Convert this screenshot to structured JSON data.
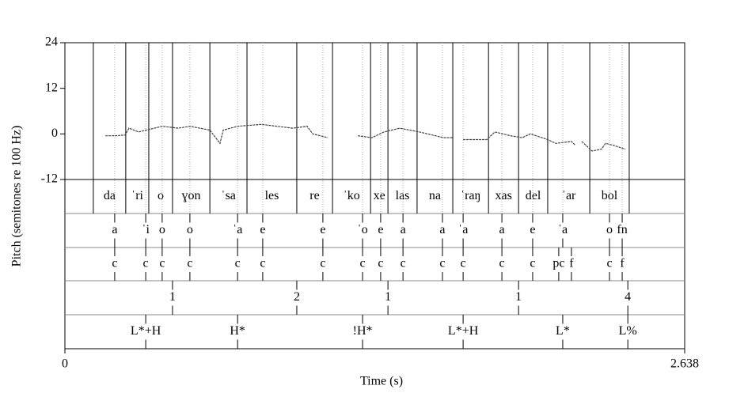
{
  "chart_data": {
    "type": "line",
    "ylabel": "Pitch (semitones re 100 Hz)",
    "xlabel": "Time (s)",
    "xlim": [
      0,
      2.638
    ],
    "xticks": [
      0,
      2.638
    ],
    "ylim": [
      -12,
      24
    ],
    "yticks": [
      24,
      12,
      0,
      -12
    ],
    "color": "#444444",
    "x": [
      0.172,
      0.212,
      0.256,
      0.273,
      0.313,
      0.414,
      0.482,
      0.532,
      0.617,
      0.66,
      0.674,
      0.735,
      0.836,
      0.97,
      1.031,
      1.055,
      1.119,
      null,
      1.247,
      1.307,
      1.358,
      1.425,
      1.509,
      1.611,
      1.651,
      null,
      1.695,
      1.796,
      1.83,
      1.897,
      1.947,
      1.981,
      2.055,
      2.089,
      2.156,
      2.173,
      null,
      2.2,
      2.244,
      2.284,
      2.301,
      2.335,
      2.385
    ],
    "values": [
      -0.5,
      -0.5,
      -0.3,
      1.5,
      0.5,
      2,
      1.5,
      2,
      1,
      -2.5,
      1,
      2,
      2.5,
      1.5,
      2,
      0,
      -1,
      null,
      -0.5,
      -1,
      0.5,
      1.5,
      0.5,
      -1,
      -1,
      null,
      -1.5,
      -1.5,
      0.5,
      -0.5,
      -1,
      0,
      -1.5,
      -2.5,
      -2,
      -3,
      null,
      -2,
      -4.5,
      -4,
      -2.5,
      -3,
      -4
    ],
    "tiers": [
      {
        "kind": "interval",
        "labels": [
          "da",
          "ˈri",
          "o",
          "ɣon",
          "ˈsa",
          "les",
          "re",
          "ˈko",
          "xe",
          "las",
          "na",
          "ˈraŋ",
          "xas",
          "del",
          "ˈar",
          "bol"
        ],
        "boundaries": [
          0.121,
          0.259,
          0.357,
          0.458,
          0.617,
          0.775,
          0.987,
          1.139,
          1.301,
          1.375,
          1.499,
          1.651,
          1.803,
          1.931,
          2.055,
          2.234,
          2.402
        ]
      },
      {
        "kind": "point",
        "labels": [
          "a",
          "ˈi",
          "o",
          "o",
          "ˈa",
          "e",
          "e",
          "ˈo",
          "e",
          "a",
          "a",
          "ˈa",
          "a",
          "e",
          "ˈa",
          "o",
          "fn"
        ],
        "times": [
          0.212,
          0.344,
          0.414,
          0.532,
          0.735,
          0.842,
          1.098,
          1.267,
          1.344,
          1.439,
          1.607,
          1.695,
          1.86,
          1.991,
          2.119,
          2.318,
          2.372
        ]
      },
      {
        "kind": "point",
        "labels": [
          "c",
          "c",
          "c",
          "c",
          "c",
          "c",
          "c",
          "c",
          "c",
          "c",
          "c",
          "c",
          "c",
          "c",
          "pc",
          "f",
          "c",
          "f"
        ],
        "times": [
          0.212,
          0.344,
          0.414,
          0.532,
          0.735,
          0.842,
          1.098,
          1.267,
          1.344,
          1.439,
          1.607,
          1.695,
          1.86,
          1.991,
          2.102,
          2.156,
          2.318,
          2.372
        ]
      },
      {
        "kind": "point",
        "labels": [
          "1",
          "2",
          "1",
          "1",
          "4"
        ],
        "times": [
          0.458,
          0.987,
          1.375,
          1.931,
          2.396
        ]
      },
      {
        "kind": "point",
        "labels": [
          "L*+H",
          "H*",
          "!H*",
          "L*+H",
          "L*",
          "L%"
        ],
        "times": [
          0.344,
          0.735,
          1.267,
          1.695,
          2.119,
          2.396
        ]
      }
    ]
  }
}
